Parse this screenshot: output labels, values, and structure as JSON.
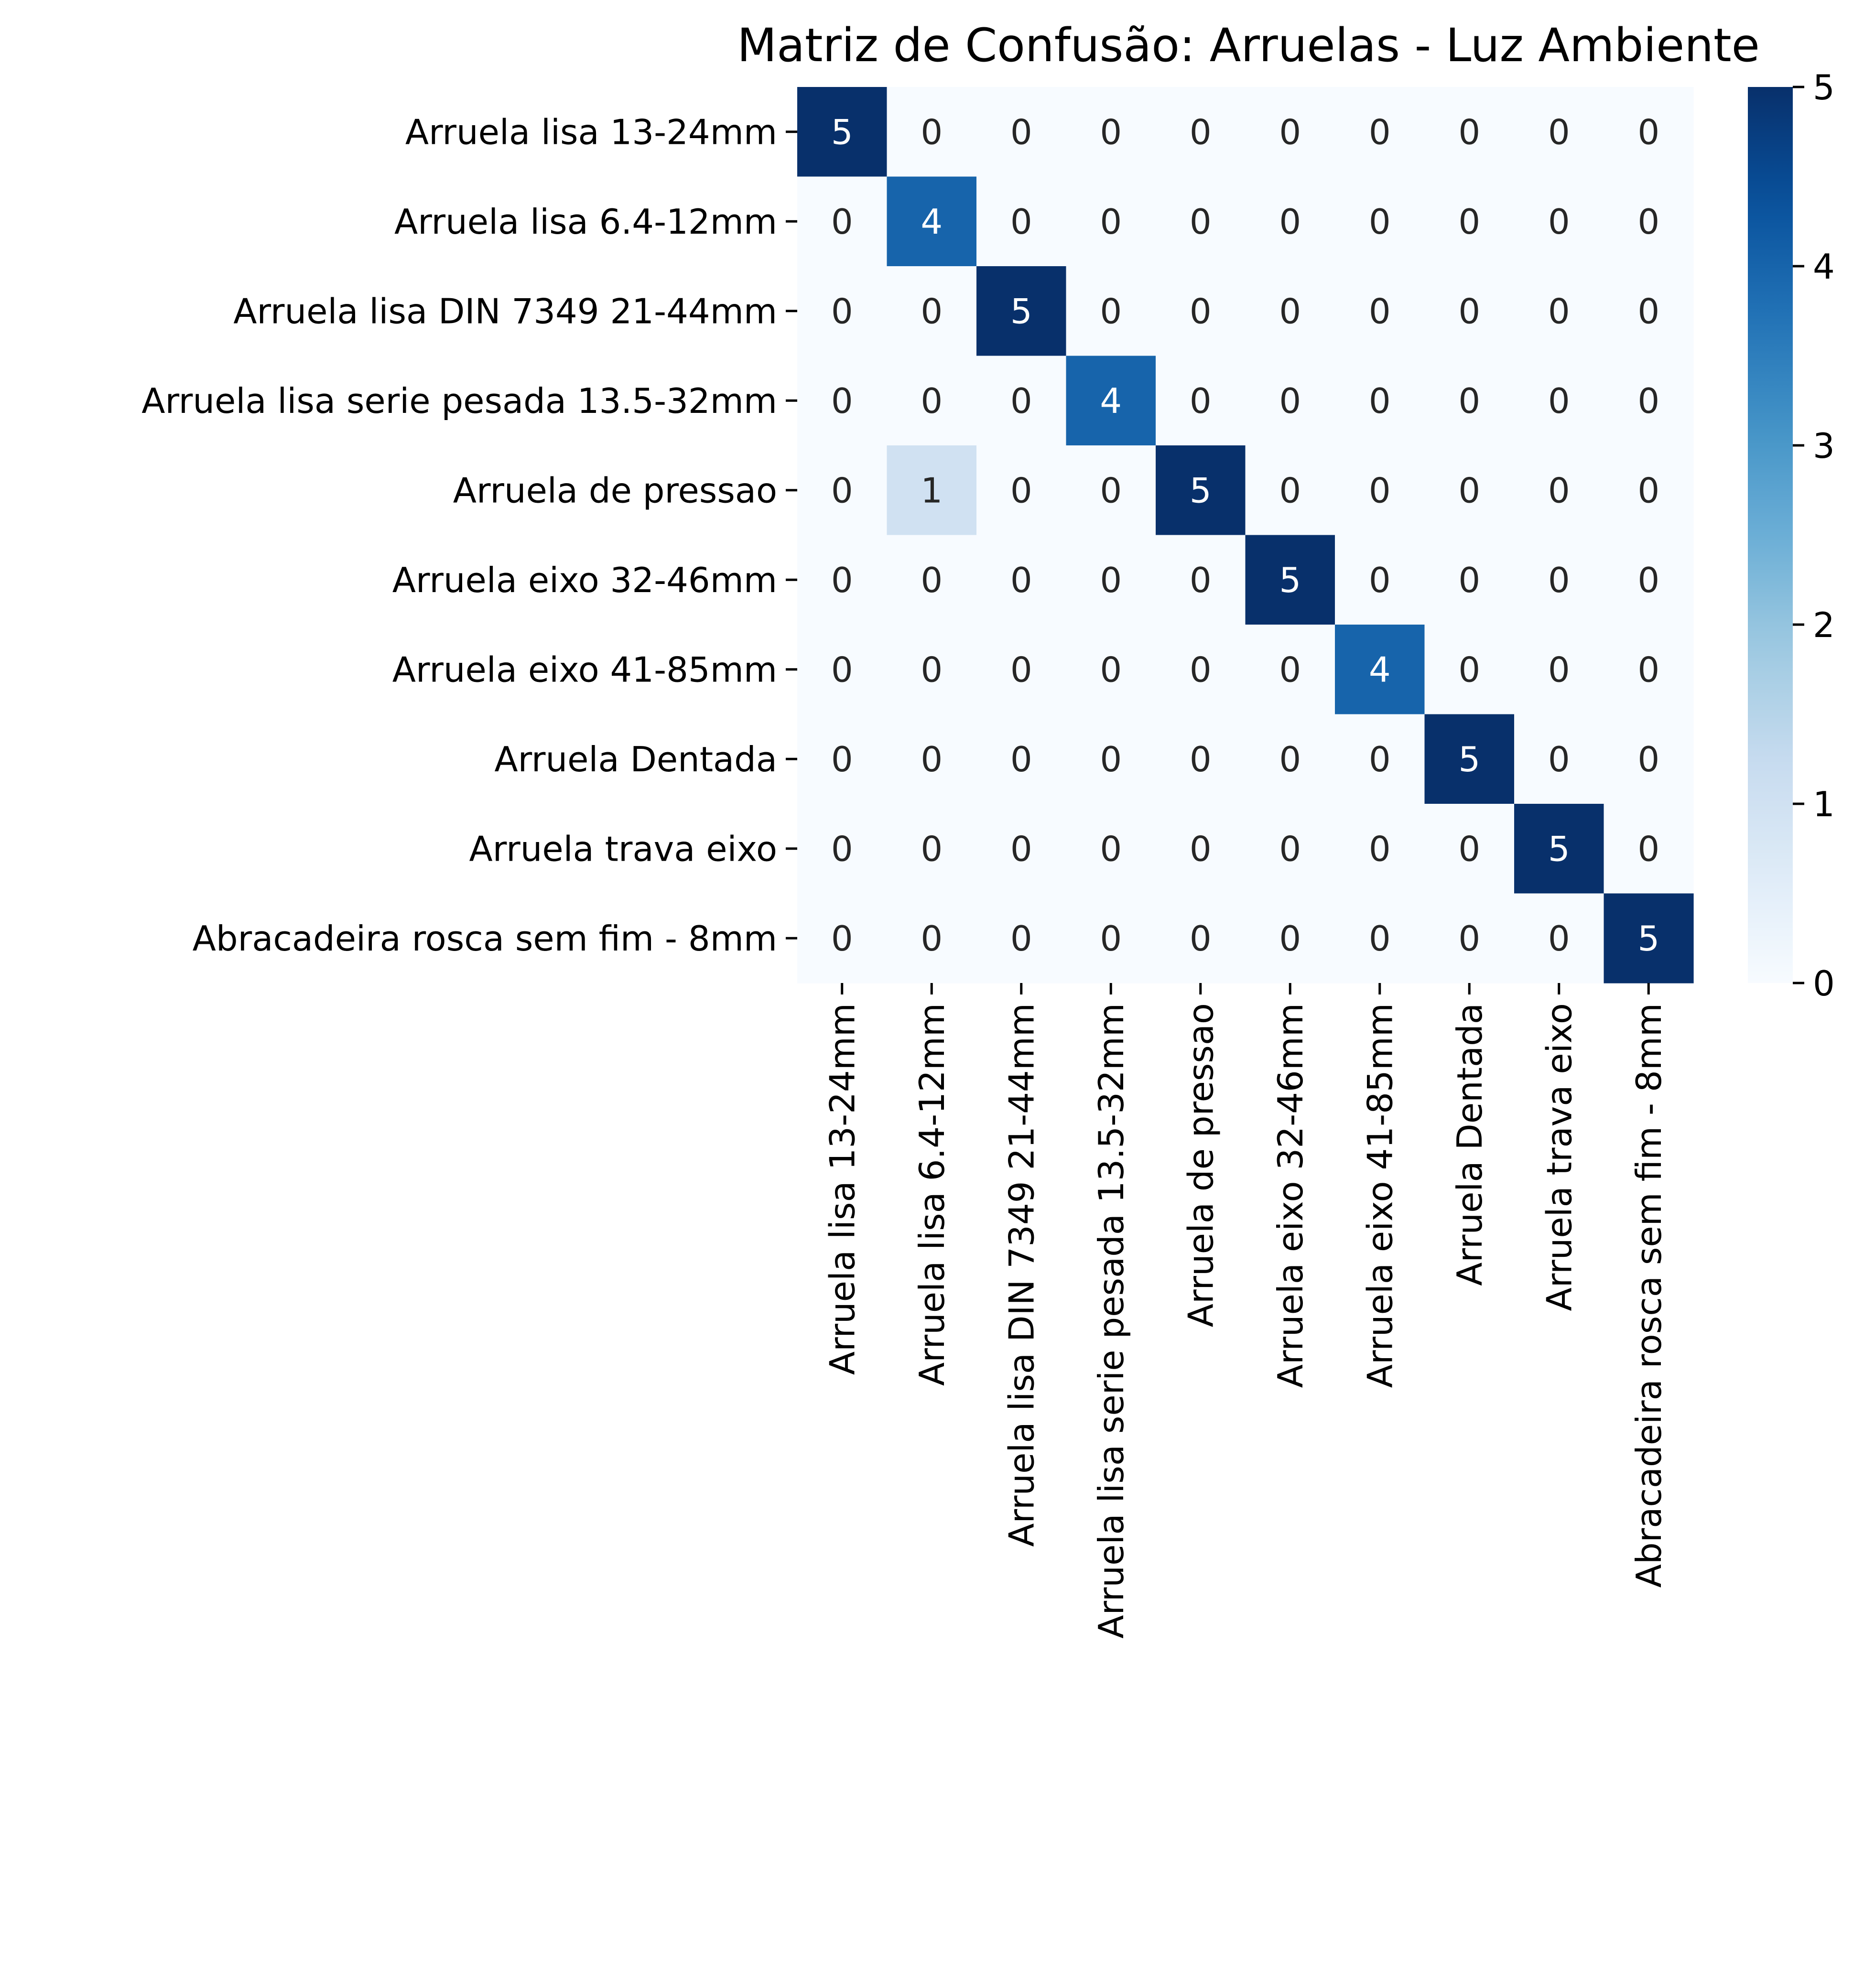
{
  "chart_data": {
    "type": "heatmap",
    "title": "Matriz de Confusão: Arruelas - Luz Ambiente",
    "xlabel": "",
    "ylabel": "",
    "row_labels": [
      "Arruela lisa 13-24mm",
      "Arruela lisa 6.4-12mm",
      "Arruela lisa DIN 7349 21-44mm",
      "Arruela lisa serie pesada 13.5-32mm",
      "Arruela de pressao",
      "Arruela eixo 32-46mm",
      "Arruela eixo 41-85mm",
      "Arruela Dentada",
      "Arruela trava eixo",
      "Abracadeira rosca sem fim - 8mm"
    ],
    "col_labels": [
      "Arruela lisa 13-24mm",
      "Arruela lisa 6.4-12mm",
      "Arruela lisa DIN 7349 21-44mm",
      "Arruela lisa serie pesada 13.5-32mm",
      "Arruela de pressao",
      "Arruela eixo 32-46mm",
      "Arruela eixo 41-85mm",
      "Arruela Dentada",
      "Arruela trava eixo",
      "Abracadeira rosca sem fim - 8mm"
    ],
    "values": [
      [
        5,
        0,
        0,
        0,
        0,
        0,
        0,
        0,
        0,
        0
      ],
      [
        0,
        4,
        0,
        0,
        0,
        0,
        0,
        0,
        0,
        0
      ],
      [
        0,
        0,
        5,
        0,
        0,
        0,
        0,
        0,
        0,
        0
      ],
      [
        0,
        0,
        0,
        4,
        0,
        0,
        0,
        0,
        0,
        0
      ],
      [
        0,
        1,
        0,
        0,
        5,
        0,
        0,
        0,
        0,
        0
      ],
      [
        0,
        0,
        0,
        0,
        0,
        5,
        0,
        0,
        0,
        0
      ],
      [
        0,
        0,
        0,
        0,
        0,
        0,
        4,
        0,
        0,
        0
      ],
      [
        0,
        0,
        0,
        0,
        0,
        0,
        0,
        5,
        0,
        0
      ],
      [
        0,
        0,
        0,
        0,
        0,
        0,
        0,
        0,
        5,
        0
      ],
      [
        0,
        0,
        0,
        0,
        0,
        0,
        0,
        0,
        0,
        5
      ]
    ],
    "colormap": "Blues",
    "vmin": 0,
    "vmax": 5,
    "colorbar_ticks": [
      0,
      1,
      2,
      3,
      4,
      5
    ],
    "annotation_dark_color": "#262626",
    "annotation_light_color": "#ffffff",
    "grid": false
  }
}
